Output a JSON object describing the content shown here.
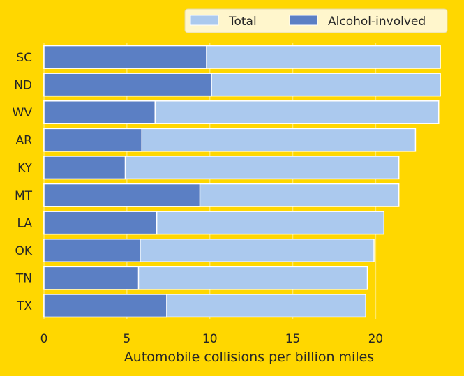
{
  "colors": {
    "background": "#FFD700",
    "total": "#ABC9EE",
    "alcohol": "#5B7FC4",
    "legend_bg": "#FFF6CC",
    "grid": "#FFE866"
  },
  "chart_data": {
    "type": "bar",
    "orientation": "horizontal",
    "stacking": "overlaid",
    "categories": [
      "SC",
      "ND",
      "WV",
      "AR",
      "KY",
      "MT",
      "LA",
      "OK",
      "TN",
      "TX"
    ],
    "series": [
      {
        "name": "Total",
        "color": "#ABC9EE",
        "values": [
          23.9,
          23.9,
          23.8,
          22.4,
          21.4,
          21.4,
          20.5,
          19.9,
          19.5,
          19.4
        ]
      },
      {
        "name": "Alcohol-involved",
        "color": "#5B7FC4",
        "values": [
          9.8,
          10.1,
          6.7,
          5.9,
          4.9,
          9.4,
          6.8,
          5.8,
          5.7,
          7.4
        ]
      }
    ],
    "xlabel": "Automobile collisions per billion miles",
    "ylabel": "",
    "xlim": [
      0,
      25.2
    ],
    "xticks": [
      0,
      5,
      10,
      15,
      20
    ],
    "grid": true,
    "legend": {
      "placement": "top-right",
      "columns": 2
    }
  }
}
